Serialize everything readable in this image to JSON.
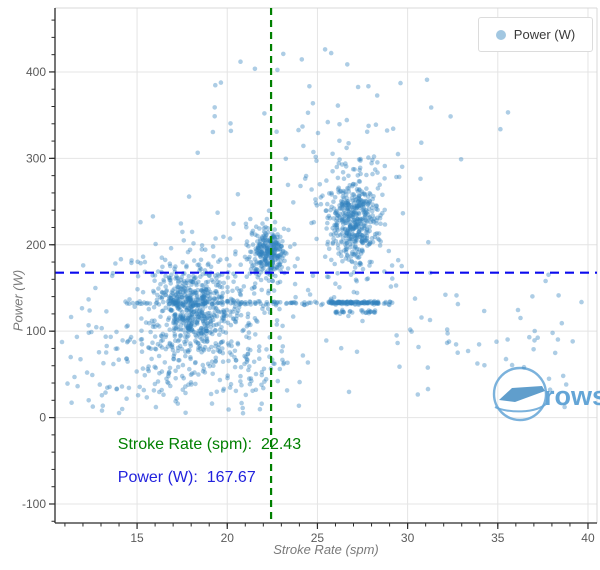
{
  "page": {
    "background": "#ffffff"
  },
  "legend": {
    "label": "Power (W)"
  },
  "watermark": {
    "text": "rowsa"
  },
  "annotations": {
    "stroke_rate": {
      "label": "Stroke Rate (spm):",
      "value": "22.43"
    },
    "power": {
      "label": "Power (W):",
      "value": "167.67"
    }
  },
  "chart_data": {
    "type": "scatter",
    "title": "",
    "xlabel": "Stroke Rate (spm)",
    "ylabel": "Power (W)",
    "legend_entries": [
      "Power (W)"
    ],
    "legend_position": "upper right",
    "grid": "major",
    "xlim": [
      10.45,
      40.5
    ],
    "ylim": [
      -122,
      474
    ],
    "x_major_ticks": [
      15,
      20,
      25,
      30,
      35,
      40
    ],
    "x_minor_tick_step": 1,
    "x_minor_tick_range": [
      11,
      40
    ],
    "y_major_ticks": [
      -100,
      0,
      100,
      200,
      300,
      400
    ],
    "y_minor_tick_step": 20,
    "y_minor_tick_range": [
      -120,
      460
    ],
    "marker": {
      "color": "#3182bd",
      "opacity": 0.4,
      "radius": 2.3
    },
    "colors": {
      "grid": "#e4e4e4",
      "spine": "#2b2b2b",
      "border": "#d8d8d8",
      "tick_label": "#5a5a5a",
      "axis_title": "#7a7a7a",
      "vline": "#008000",
      "hline": "#0a0aee",
      "watermark": "#64a5d6",
      "watermark_fill": "#4f93c7"
    },
    "reference_lines": [
      {
        "axis": "x",
        "value": 22.43,
        "style": "dashed",
        "color": "#008000",
        "readout": "Stroke Rate (spm):  22.43"
      },
      {
        "axis": "y",
        "value": 167.67,
        "style": "dashed",
        "color": "#0a0aee",
        "readout": "Power (W): 167.67"
      }
    ],
    "seed": 1337,
    "clusters": [
      {
        "name": "main-low-core",
        "n": 420,
        "x": {
          "mean": 18.15,
          "sd": 0.95
        },
        "y": {
          "mean": 128,
          "sd": 21
        }
      },
      {
        "name": "main-low-halo",
        "n": 300,
        "x": {
          "mean": 18.4,
          "sd": 2.1
        },
        "y": {
          "mean": 110,
          "sd": 52
        },
        "clip": {
          "xmin": 10.8,
          "xmax": 29.5,
          "ymin": 4,
          "ymax": 460
        }
      },
      {
        "name": "mid-core",
        "n": 240,
        "x": {
          "mean": 22.3,
          "sd": 0.5
        },
        "y": {
          "mean": 190,
          "sd": 12
        }
      },
      {
        "name": "mid-halo",
        "n": 60,
        "x": {
          "mean": 22.2,
          "sd": 1.0
        },
        "y": {
          "mean": 185,
          "sd": 30
        },
        "clip": {
          "ymin": 100
        }
      },
      {
        "name": "high-core",
        "n": 400,
        "x": {
          "mean": 27.05,
          "sd": 0.7
        },
        "y": {
          "mean": 228,
          "sd": 25
        }
      },
      {
        "name": "high-halo",
        "n": 130,
        "x": {
          "mean": 26.8,
          "sd": 1.5
        },
        "y": {
          "mean": 235,
          "sd": 55
        },
        "clip": {
          "ymin": 60,
          "ymax": 470
        }
      },
      {
        "name": "band-133",
        "n": 120,
        "x": {
          "min": 14.2,
          "max": 29.3
        },
        "y": {
          "mean": 132.5,
          "sd": 1.2
        }
      },
      {
        "name": "band-133-dense",
        "n": 90,
        "x": {
          "min": 25.6,
          "max": 28.4
        },
        "y": {
          "mean": 133,
          "sd": 0.9
        }
      },
      {
        "name": "band-122",
        "n": 28,
        "x": {
          "min": 26.0,
          "max": 28.2
        },
        "y": {
          "mean": 122,
          "sd": 1.0
        }
      },
      {
        "name": "spread-low",
        "n": 230,
        "x": {
          "mean": 18.8,
          "sd": 3.1
        },
        "y": {
          "mean": 70,
          "sd": 48
        },
        "clip": {
          "xmin": 10.8,
          "xmax": 30,
          "ymin": 4
        }
      },
      {
        "name": "right-sparse",
        "n": 55,
        "x": {
          "min": 29,
          "max": 40
        },
        "y": {
          "mean": 92,
          "sd": 42
        },
        "clip": {
          "ymin": 10,
          "ymax": 175
        }
      },
      {
        "name": "high-sparse",
        "n": 48,
        "x": {
          "mean": 25.5,
          "sd": 4.6
        },
        "y": {
          "mean": 330,
          "sd": 55
        },
        "clip": {
          "xmin": 12,
          "xmax": 40,
          "ymin": 268,
          "ymax": 465
        }
      },
      {
        "name": "left-sparse",
        "n": 26,
        "x": {
          "min": 10.8,
          "max": 14.6
        },
        "y": {
          "mean": 65,
          "sd": 50
        },
        "clip": {
          "ymin": 5,
          "ymax": 310
        }
      }
    ]
  }
}
